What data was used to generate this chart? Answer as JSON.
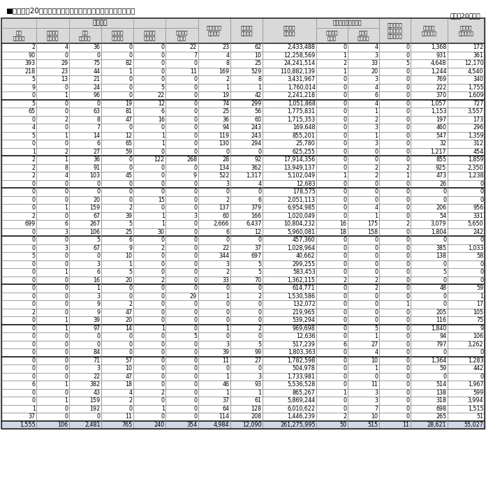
{
  "title": "■附属資料20　自然災害による都道府県別被害状況（つづき）",
  "subtitle": "（平成20年中）",
  "headers_row1": [
    "その　他",
    "",
    "",
    "",
    "",
    "",
    "り災世帯数",
    "り災者数",
    "被害総額",
    "災害対策本部の設置",
    "",
    "災害救助法\n適用市町村\n（延べ数）",
    "消防職員\n出動延人数",
    "消防団員\n出動延人数"
  ],
  "headers_row2": [
    "学校\n（箇所）",
    "橋りょう\n（箇所）",
    "河川\n（箇所）",
    "崖くずれ\n（箇所）",
    "鉄道不通\n（箇所）",
    "被害船舶\n（隻）",
    "（世帯）",
    "（人数）",
    "（千円）",
    "都道府県\n（回）",
    "市町村\n（団体）",
    "",
    "",
    ""
  ],
  "col_spans": {
    "その　他": 6
  },
  "disaster_col_span": 2,
  "rows": [
    [
      2,
      4,
      36,
      0,
      0,
      22,
      23,
      62,
      "2,433,488",
      0,
      4,
      0,
      "1,368",
      172
    ],
    [
      90,
      0,
      0,
      0,
      0,
      7,
      4,
      10,
      "12,258,569",
      1,
      3,
      0,
      931,
      361
    ],
    [
      393,
      29,
      75,
      82,
      0,
      0,
      8,
      25,
      "24,241,514",
      2,
      33,
      5,
      "4,648",
      "12,170"
    ],
    [
      218,
      23,
      44,
      1,
      0,
      11,
      169,
      529,
      "110,882,139",
      1,
      20,
      0,
      "1,244",
      "4,540"
    ],
    [
      5,
      13,
      21,
      0,
      0,
      0,
      2,
      8,
      "3,431,967",
      0,
      3,
      0,
      769,
      340
    ],
    [
      9,
      0,
      24,
      0,
      5,
      0,
      1,
      1,
      "1,760,014",
      0,
      4,
      0,
      222,
      "1,755"
    ],
    [
      0,
      1,
      96,
      0,
      22,
      0,
      19,
      42,
      "2,241,218",
      0,
      6,
      0,
      370,
      "1,609"
    ],
    [
      5,
      0,
      0,
      19,
      12,
      0,
      74,
      299,
      "1,051,868",
      0,
      4,
      0,
      "1,057",
      727
    ],
    [
      65,
      0,
      63,
      81,
      6,
      0,
      25,
      56,
      "1,775,831",
      0,
      1,
      0,
      "1,153",
      "3,557"
    ],
    [
      0,
      2,
      8,
      47,
      16,
      0,
      36,
      60,
      "1,715,353",
      0,
      2,
      0,
      197,
      173
    ],
    [
      4,
      0,
      7,
      0,
      0,
      0,
      94,
      243,
      "169,648",
      0,
      3,
      0,
      460,
      296
    ],
    [
      5,
      1,
      14,
      12,
      1,
      0,
      119,
      243,
      "855,201",
      0,
      1,
      0,
      547,
      "1,359"
    ],
    [
      0,
      0,
      6,
      65,
      1,
      0,
      130,
      294,
      "25,780",
      0,
      3,
      0,
      32,
      312
    ],
    [
      1,
      2,
      27,
      59,
      0,
      0,
      0,
      0,
      "625,255",
      0,
      0,
      0,
      "1,217",
      454
    ],
    [
      2,
      1,
      36,
      0,
      122,
      268,
      28,
      92,
      "17,914,356",
      0,
      0,
      0,
      855,
      "1,859"
    ],
    [
      2,
      8,
      91,
      0,
      0,
      0,
      134,
      362,
      "13,949,137",
      0,
      2,
      2,
      925,
      "2,350"
    ],
    [
      2,
      4,
      103,
      45,
      0,
      9,
      522,
      "1,317",
      "5,102,049",
      1,
      2,
      1,
      473,
      "1,238"
    ],
    [
      0,
      0,
      0,
      0,
      0,
      0,
      3,
      4,
      "12,683",
      0,
      0,
      0,
      26,
      0
    ],
    [
      0,
      0,
      0,
      0,
      0,
      0,
      0,
      0,
      "178,575",
      0,
      0,
      0,
      0,
      0
    ],
    [
      0,
      0,
      20,
      0,
      15,
      0,
      2,
      6,
      "2,051,113",
      0,
      0,
      0,
      0,
      0
    ],
    [
      0,
      1,
      159,
      2,
      0,
      0,
      137,
      379,
      "6,954,985",
      0,
      4,
      0,
      206,
      956
    ],
    [
      2,
      0,
      67,
      39,
      1,
      3,
      60,
      166,
      "1,020,049",
      0,
      1,
      0,
      54,
      331
    ],
    [
      699,
      6,
      267,
      5,
      1,
      0,
      "2,666",
      "6,437",
      "10,804,232",
      16,
      175,
      2,
      "3,079",
      "5,650"
    ],
    [
      0,
      3,
      106,
      25,
      30,
      0,
      6,
      12,
      "5,960,081",
      18,
      158,
      0,
      "1,804",
      242
    ],
    [
      0,
      0,
      5,
      6,
      0,
      0,
      0,
      0,
      "457,360",
      0,
      0,
      0,
      0,
      0
    ],
    [
      0,
      3,
      67,
      9,
      2,
      0,
      22,
      37,
      "1,028,964",
      0,
      0,
      0,
      385,
      "1,033"
    ],
    [
      5,
      0,
      0,
      10,
      0,
      0,
      344,
      697,
      "40,662",
      0,
      0,
      0,
      138,
      58
    ],
    [
      0,
      0,
      3,
      1,
      0,
      0,
      3,
      5,
      "299,255",
      0,
      0,
      0,
      0,
      0
    ],
    [
      0,
      1,
      6,
      5,
      0,
      0,
      2,
      5,
      "583,453",
      0,
      0,
      0,
      5,
      0
    ],
    [
      0,
      0,
      16,
      20,
      2,
      0,
      33,
      70,
      "1,362,115",
      2,
      2,
      0,
      0,
      0
    ],
    [
      0,
      0,
      1,
      0,
      0,
      0,
      0,
      0,
      "614,771",
      0,
      2,
      0,
      48,
      59
    ],
    [
      0,
      0,
      3,
      0,
      0,
      29,
      1,
      2,
      "1,530,586",
      0,
      0,
      0,
      0,
      1
    ],
    [
      0,
      0,
      9,
      2,
      0,
      0,
      0,
      0,
      "132,072",
      0,
      0,
      1,
      0,
      17
    ],
    [
      2,
      0,
      9,
      47,
      0,
      0,
      0,
      0,
      "219,965",
      0,
      0,
      0,
      205,
      105
    ],
    [
      0,
      1,
      39,
      20,
      0,
      0,
      0,
      0,
      "539,294",
      0,
      0,
      0,
      116,
      75
    ],
    [
      0,
      1,
      97,
      14,
      1,
      0,
      1,
      2,
      "969,698",
      0,
      5,
      0,
      "1,840",
      9
    ],
    [
      0,
      0,
      0,
      0,
      0,
      5,
      0,
      0,
      "12,636",
      0,
      1,
      0,
      94,
      106
    ],
    [
      0,
      0,
      0,
      0,
      0,
      0,
      3,
      5,
      "517,239",
      6,
      27,
      0,
      797,
      "3,262"
    ],
    [
      0,
      0,
      84,
      0,
      0,
      0,
      39,
      99,
      "1,803,363",
      0,
      4,
      0,
      0,
      0
    ],
    [
      0,
      0,
      71,
      57,
      0,
      0,
      11,
      27,
      "1,782,598",
      0,
      10,
      0,
      "1,364",
      "1,283"
    ],
    [
      0,
      0,
      3,
      10,
      0,
      0,
      0,
      0,
      "504,978",
      0,
      1,
      0,
      59,
      442
    ],
    [
      0,
      0,
      22,
      47,
      0,
      0,
      1,
      3,
      "1,733,981",
      0,
      0,
      0,
      0,
      0
    ],
    [
      6,
      1,
      382,
      18,
      0,
      0,
      46,
      93,
      "5,536,528",
      0,
      11,
      0,
      514,
      "1,967"
    ],
    [
      0,
      0,
      43,
      4,
      2,
      0,
      1,
      1,
      "865,267",
      1,
      3,
      0,
      138,
      599
    ],
    [
      0,
      1,
      159,
      2,
      0,
      0,
      37,
      61,
      "5,869,244",
      0,
      3,
      0,
      318,
      "3,994"
    ],
    [
      1,
      0,
      192,
      0,
      1,
      0,
      64,
      128,
      "6,010,622",
      0,
      7,
      0,
      698,
      "1,515"
    ],
    [
      37,
      0,
      0,
      11,
      0,
      0,
      114,
      208,
      "1,446,239",
      2,
      10,
      0,
      265,
      51
    ],
    [
      "1,555",
      106,
      "2,481",
      765,
      240,
      354,
      "4,984",
      "12,090",
      "261,275,995",
      50,
      515,
      11,
      "28,621",
      "55,027"
    ]
  ],
  "group_borders": [
    7,
    14,
    18,
    24,
    30,
    35,
    39,
    47
  ],
  "total_row_index": 47,
  "bg_color": "#ffffff",
  "header_bg": "#d9d9d9",
  "total_bg": "#d0d8e8",
  "grid_color": "#999999",
  "thick_border_color": "#333333"
}
